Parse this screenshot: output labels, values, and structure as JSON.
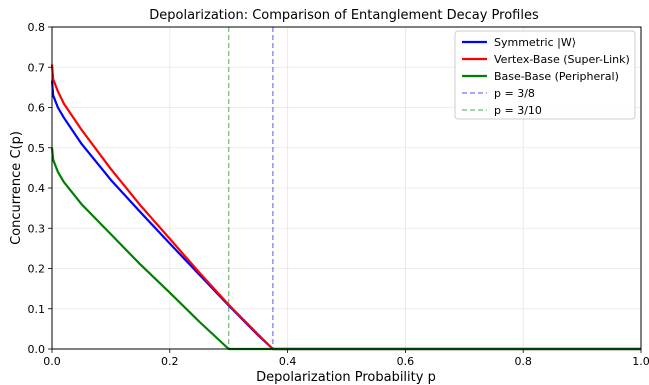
{
  "chart_data": {
    "type": "line",
    "title": "Depolarization: Comparison of Entanglement Decay Profiles",
    "xlabel": "Depolarization Probability p",
    "ylabel": "Concurrence C(p)",
    "xlim": [
      0.0,
      1.0
    ],
    "ylim": [
      0.0,
      0.8
    ],
    "xticks": [
      "0.0",
      "0.2",
      "0.4",
      "0.6",
      "0.8",
      "1.0"
    ],
    "yticks": [
      "0.0",
      "0.1",
      "0.2",
      "0.3",
      "0.4",
      "0.5",
      "0.6",
      "0.7",
      "0.8"
    ],
    "grid": true,
    "legend_position": "top-right",
    "series": [
      {
        "name": "Symmetric |W⟩",
        "color": "#0000ff",
        "style": "solid",
        "x": [
          0.0,
          0.002,
          0.01,
          0.02,
          0.05,
          0.1,
          0.15,
          0.2,
          0.25,
          0.3,
          0.35,
          0.375,
          0.4,
          0.6,
          0.8,
          1.0
        ],
        "y": [
          0.667,
          0.63,
          0.6,
          0.575,
          0.51,
          0.42,
          0.34,
          0.262,
          0.185,
          0.108,
          0.034,
          0.0,
          0.0,
          0.0,
          0.0,
          0.0
        ]
      },
      {
        "name": "Vertex-Base (Super-Link)",
        "color": "#ff0000",
        "style": "solid",
        "x": [
          0.0,
          0.002,
          0.01,
          0.02,
          0.05,
          0.1,
          0.15,
          0.2,
          0.25,
          0.3,
          0.35,
          0.375,
          0.4,
          0.6,
          0.8,
          1.0
        ],
        "y": [
          0.707,
          0.67,
          0.64,
          0.61,
          0.545,
          0.447,
          0.357,
          0.274,
          0.19,
          0.11,
          0.036,
          0.0,
          0.0,
          0.0,
          0.0,
          0.0
        ]
      },
      {
        "name": "Base-Base (Peripheral)",
        "color": "#008000",
        "style": "solid",
        "x": [
          0.0,
          0.002,
          0.01,
          0.02,
          0.05,
          0.1,
          0.15,
          0.2,
          0.25,
          0.3,
          0.35,
          0.4,
          0.6,
          0.8,
          1.0
        ],
        "y": [
          0.5,
          0.47,
          0.44,
          0.415,
          0.36,
          0.285,
          0.21,
          0.14,
          0.068,
          0.0,
          0.0,
          0.0,
          0.0,
          0.0,
          0.0
        ]
      },
      {
        "name": "p = 3/8",
        "color": "#0000ff",
        "style": "dashed",
        "vline": 0.375
      },
      {
        "name": "p = 3/10",
        "color": "#008000",
        "style": "dashed",
        "vline": 0.3
      }
    ]
  }
}
